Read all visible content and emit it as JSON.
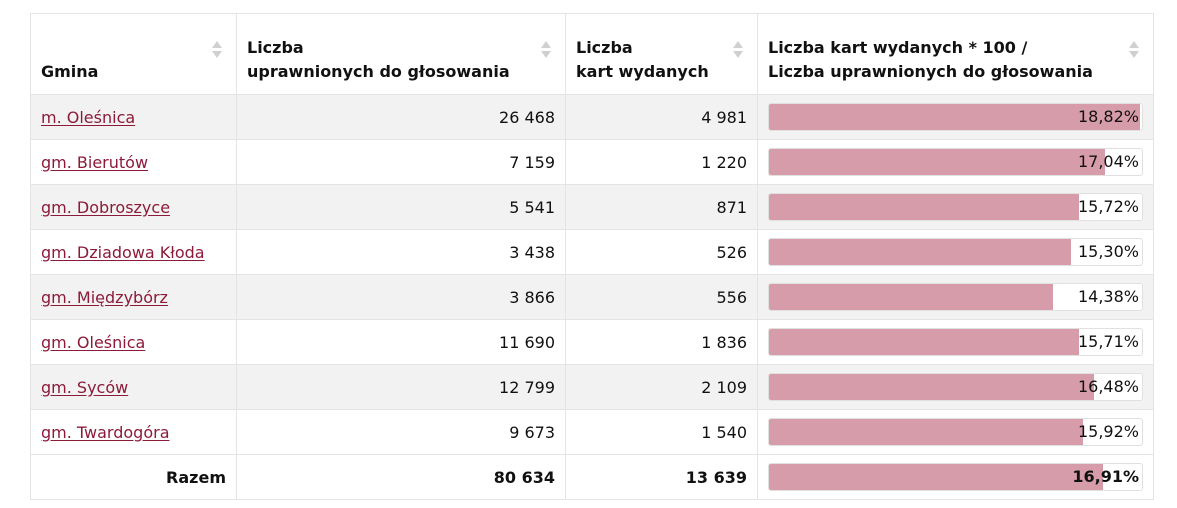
{
  "headers": {
    "gmina": [
      "Gmina"
    ],
    "uprawnionych": [
      "Liczba",
      "uprawnionych do głosowania"
    ],
    "wydanych": [
      "Liczba",
      "kart wydanych"
    ],
    "frekwencja": [
      "Liczba kart wydanych * 100 /",
      "Liczba uprawnionych do głosowania"
    ]
  },
  "rows": [
    {
      "gmina": "m. Oleśnica",
      "uprawnionych": "26 468",
      "wydanych": "4 981",
      "pct_label": "18,82%",
      "pct": 18.82
    },
    {
      "gmina": "gm. Bierutów",
      "uprawnionych": "7 159",
      "wydanych": "1 220",
      "pct_label": "17,04%",
      "pct": 17.04
    },
    {
      "gmina": "gm. Dobroszyce",
      "uprawnionych": "5 541",
      "wydanych": "871",
      "pct_label": "15,72%",
      "pct": 15.72
    },
    {
      "gmina": "gm. Dziadowa Kłoda",
      "uprawnionych": "3 438",
      "wydanych": "526",
      "pct_label": "15,30%",
      "pct": 15.3
    },
    {
      "gmina": "gm. Międzybórz",
      "uprawnionych": "3 866",
      "wydanych": "556",
      "pct_label": "14,38%",
      "pct": 14.38
    },
    {
      "gmina": "gm. Oleśnica",
      "uprawnionych": "11 690",
      "wydanych": "1 836",
      "pct_label": "15,71%",
      "pct": 15.71
    },
    {
      "gmina": "gm. Syców",
      "uprawnionych": "12 799",
      "wydanych": "2 109",
      "pct_label": "16,48%",
      "pct": 16.48
    },
    {
      "gmina": "gm. Twardogóra",
      "uprawnionych": "9 673",
      "wydanych": "1 540",
      "pct_label": "15,92%",
      "pct": 15.92
    }
  ],
  "total": {
    "label": "Razem",
    "uprawnionych": "80 634",
    "wydanych": "13 639",
    "pct_label": "16,91%",
    "pct": 16.91
  },
  "colors": {
    "bar": "#d79caa",
    "link": "#8c1b3a",
    "stripe": "#f2f2f2"
  }
}
